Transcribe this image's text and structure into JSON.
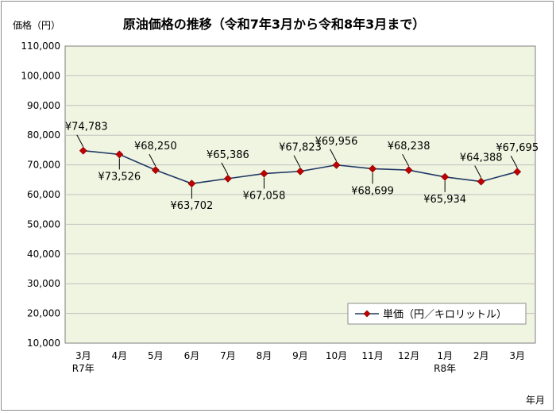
{
  "chart_data": {
    "type": "line",
    "title": "原油価格の推移（令和7年3月から令和8年3月まで）",
    "ylabel": "価格（円）",
    "xlabel": "年月",
    "ylim": [
      10000,
      110000
    ],
    "yticks": [
      "10,000",
      "20,000",
      "30,000",
      "40,000",
      "50,000",
      "60,000",
      "70,000",
      "80,000",
      "90,000",
      "100,000",
      "110,000"
    ],
    "categories": [
      "3月",
      "4月",
      "5月",
      "6月",
      "7月",
      "8月",
      "9月",
      "10月",
      "11月",
      "12月",
      "1月",
      "2月",
      "3月"
    ],
    "sub_categories": [
      "R7年",
      "",
      "",
      "",
      "",
      "",
      "",
      "",
      "",
      "",
      "R8年",
      "",
      ""
    ],
    "series": [
      {
        "name": "単価（円／キロリットル）",
        "values": [
          74783,
          73526,
          68250,
          63702,
          65386,
          67058,
          67823,
          69956,
          68699,
          68238,
          65934,
          64388,
          67695
        ],
        "labels": [
          "¥74,783",
          "¥73,526",
          "¥68,250",
          "¥63,702",
          "¥65,386",
          "¥67,058",
          "¥67,823",
          "¥69,956",
          "¥68,699",
          "¥68,238",
          "¥65,934",
          "¥64,388",
          "¥67,695"
        ],
        "label_position": [
          "above",
          "below",
          "above",
          "below",
          "above",
          "below",
          "above",
          "above",
          "below",
          "above",
          "below",
          "above",
          "above"
        ]
      }
    ],
    "grid": true,
    "legend_position": "bottom-right",
    "colors": {
      "plot_bg": "#f0f5e1",
      "grid": "#bfbfbf",
      "line": "#1f3864",
      "marker": "#c00000"
    }
  }
}
